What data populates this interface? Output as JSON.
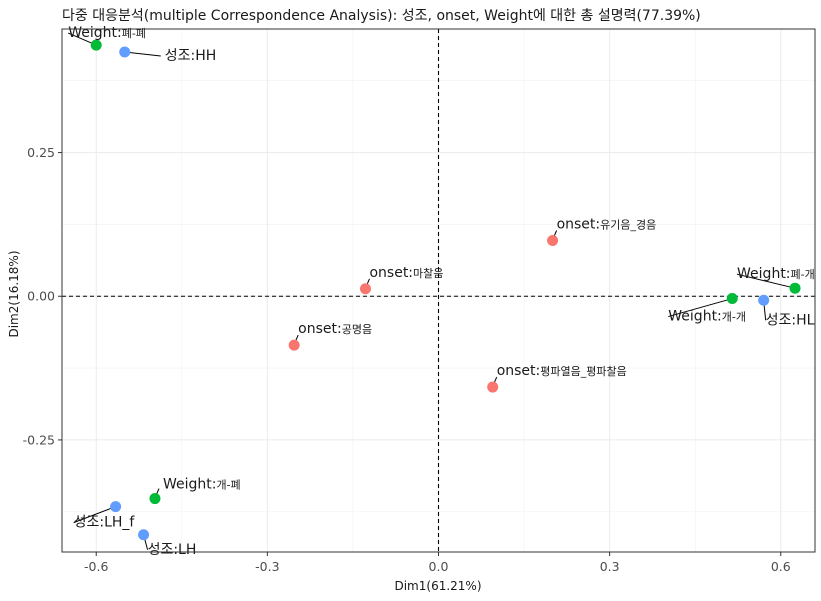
{
  "chart_data": {
    "type": "scatter",
    "title": "다중 대응분석(multiple Correspondence Analysis): 성조, onset, Weight에 대한 총 설명력(77.39%)",
    "xlabel": "Dim1(61.21%)",
    "ylabel": "Dim2(16.18%)",
    "xlim": [
      -0.66,
      0.66
    ],
    "ylim": [
      -0.445,
      0.465
    ],
    "xticks": [
      -0.6,
      -0.3,
      0.0,
      0.3,
      0.6
    ],
    "xtick_labels": [
      "-0.6",
      "-0.3",
      "0.0",
      "0.3",
      "0.6"
    ],
    "yticks": [
      -0.25,
      0.0,
      0.25
    ],
    "ytick_labels": [
      "-0.25",
      "0.00",
      "0.25"
    ],
    "grid": true,
    "reference_lines": {
      "x": 0,
      "y": 0,
      "style": "dashed"
    },
    "series": [
      {
        "color": "#F8766D",
        "points": [
          {
            "var": "onset",
            "cat": "유기음_경음",
            "x": 0.2,
            "y": 0.097
          },
          {
            "var": "onset",
            "cat": "마찰음",
            "x": -0.128,
            "y": 0.013
          },
          {
            "var": "onset",
            "cat": "공명음",
            "x": -0.253,
            "y": -0.085
          },
          {
            "var": "onset",
            "cat": "평파열음_평파찰음",
            "x": 0.095,
            "y": -0.158
          }
        ]
      },
      {
        "color": "#00BA38",
        "points": [
          {
            "var": "Weight",
            "cat": "폐-폐",
            "x": -0.6,
            "y": 0.437
          },
          {
            "var": "Weight",
            "cat": "폐-개",
            "x": 0.625,
            "y": 0.014
          },
          {
            "var": "Weight",
            "cat": "개-개",
            "x": 0.515,
            "y": -0.004
          },
          {
            "var": "Weight",
            "cat": "개-폐",
            "x": -0.497,
            "y": -0.352
          }
        ]
      },
      {
        "color": "#619CFF",
        "points": [
          {
            "var": "성조",
            "cat": "HH",
            "x": -0.55,
            "y": 0.425
          },
          {
            "var": "성조",
            "cat": "HL",
            "x": 0.57,
            "y": -0.007
          },
          {
            "var": "성조",
            "cat": "LH_f",
            "x": -0.566,
            "y": -0.366
          },
          {
            "var": "성조",
            "cat": "LH",
            "x": -0.517,
            "y": -0.415
          }
        ]
      }
    ]
  }
}
